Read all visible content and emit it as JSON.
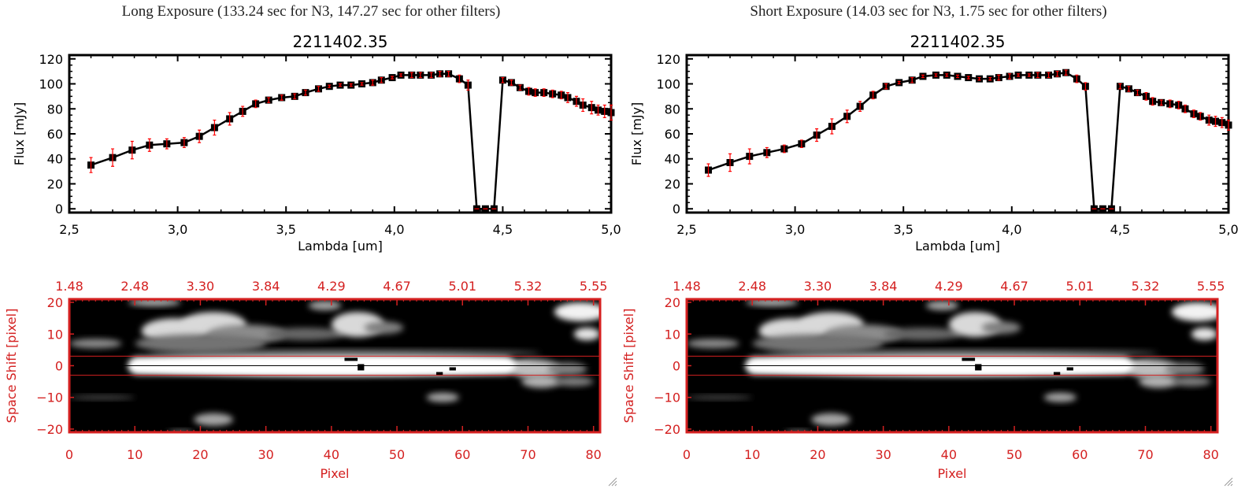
{
  "panels": [
    {
      "exposure_title": "Long Exposure (133.24 sec for N3, 147.27 sec for other filters)"
    },
    {
      "exposure_title": "Short Exposure (14.03 sec for N3, 1.75 sec for other filters)"
    }
  ],
  "colors": {
    "axis_red": "#d42020",
    "errorbar": "#ff0000",
    "line": "#000000"
  },
  "chart_data": [
    {
      "type": "line",
      "title": "2211402.35",
      "xlabel": "Lambda [um]",
      "ylabel": "Flux [mJy]",
      "xlim": [
        2.5,
        5.0
      ],
      "ylim": [
        -3,
        123
      ],
      "xticks": [
        "2.5",
        "3.0",
        "3.5",
        "4.0",
        "4.5",
        "5.0"
      ],
      "yticks": [
        "0",
        "20",
        "40",
        "60",
        "80",
        "100",
        "120"
      ],
      "x": [
        2.6,
        2.7,
        2.79,
        2.87,
        2.95,
        3.03,
        3.1,
        3.17,
        3.24,
        3.3,
        3.36,
        3.42,
        3.48,
        3.54,
        3.59,
        3.65,
        3.7,
        3.75,
        3.8,
        3.85,
        3.9,
        3.94,
        3.99,
        4.03,
        4.08,
        4.12,
        4.17,
        4.21,
        4.25,
        4.3,
        4.34,
        4.38,
        4.42,
        4.46,
        4.5,
        4.54,
        4.58,
        4.62,
        4.65,
        4.69,
        4.73,
        4.77,
        4.8,
        4.84,
        4.87,
        4.91,
        4.94,
        4.97,
        5.0
      ],
      "y": [
        35,
        41,
        47,
        51,
        52,
        53,
        58,
        65,
        72,
        78,
        84,
        87,
        89,
        90,
        93,
        96,
        98,
        99,
        99,
        100,
        101,
        103,
        105,
        107,
        107,
        107,
        107,
        108,
        108,
        104,
        99,
        0,
        0,
        0,
        103,
        101,
        97,
        94,
        93,
        93,
        92,
        91,
        89,
        86,
        83,
        81,
        79,
        78,
        77
      ],
      "yerr": [
        6,
        7,
        7,
        5,
        4,
        4,
        5,
        6,
        5,
        4,
        3,
        2,
        2,
        2,
        2,
        2,
        1,
        1,
        1,
        1,
        2,
        2,
        1,
        1,
        2,
        2,
        2,
        2,
        2,
        3,
        4,
        0,
        0,
        0,
        2,
        2,
        2,
        3,
        3,
        3,
        3,
        3,
        4,
        4,
        5,
        5,
        4,
        5,
        6
      ]
    },
    {
      "type": "line",
      "title": "2211402.35",
      "xlabel": "Lambda [um]",
      "ylabel": "Flux [mJy]",
      "xlim": [
        2.5,
        5.0
      ],
      "ylim": [
        -3,
        123
      ],
      "xticks": [
        "2.5",
        "3.0",
        "3.5",
        "4.0",
        "4.5",
        "5.0"
      ],
      "yticks": [
        "0",
        "20",
        "40",
        "60",
        "80",
        "100",
        "120"
      ],
      "x": [
        2.6,
        2.7,
        2.79,
        2.87,
        2.95,
        3.03,
        3.1,
        3.17,
        3.24,
        3.3,
        3.36,
        3.42,
        3.48,
        3.54,
        3.59,
        3.65,
        3.7,
        3.75,
        3.8,
        3.85,
        3.9,
        3.94,
        3.99,
        4.03,
        4.08,
        4.12,
        4.17,
        4.21,
        4.25,
        4.3,
        4.34,
        4.38,
        4.42,
        4.46,
        4.5,
        4.54,
        4.58,
        4.62,
        4.65,
        4.69,
        4.73,
        4.77,
        4.8,
        4.84,
        4.87,
        4.91,
        4.94,
        4.97,
        5.0
      ],
      "y": [
        31,
        37,
        42,
        45,
        48,
        52,
        59,
        66,
        74,
        82,
        91,
        98,
        101,
        103,
        106,
        107,
        107,
        106,
        105,
        104,
        104,
        105,
        106,
        107,
        107,
        107,
        107,
        108,
        109,
        104,
        98,
        0,
        0,
        0,
        98,
        96,
        93,
        90,
        86,
        85,
        84,
        83,
        80,
        76,
        74,
        71,
        70,
        69,
        67
      ],
      "yerr": [
        5,
        7,
        6,
        4,
        3,
        3,
        5,
        6,
        5,
        4,
        3,
        2,
        1,
        2,
        1,
        1,
        1,
        1,
        1,
        1,
        1,
        2,
        2,
        1,
        1,
        2,
        2,
        2,
        2,
        3,
        3,
        0,
        0,
        0,
        2,
        2,
        2,
        3,
        3,
        2,
        3,
        3,
        3,
        3,
        3,
        4,
        4,
        4,
        4
      ]
    },
    {
      "type": "heatmap",
      "xlabel": "Pixel",
      "ylabel": "Space Shift [pixel]",
      "xlim": [
        0,
        81
      ],
      "ylim": [
        -21,
        21
      ],
      "xticks": [
        "0",
        "10",
        "20",
        "30",
        "40",
        "50",
        "60",
        "70",
        "80"
      ],
      "yticks": [
        "-20",
        "-10",
        "0",
        "10",
        "20"
      ],
      "top_ticks": [
        "1.48",
        "2.48",
        "3.30",
        "3.84",
        "4.29",
        "4.67",
        "5.01",
        "5.32",
        "5.55"
      ],
      "aperture_lines": [
        3,
        -3
      ],
      "center_line": 0
    },
    {
      "type": "heatmap",
      "xlabel": "Pixel",
      "ylabel": "Space Shift [pixel]",
      "xlim": [
        0,
        81
      ],
      "ylim": [
        -21,
        21
      ],
      "xticks": [
        "0",
        "10",
        "20",
        "30",
        "40",
        "50",
        "60",
        "70",
        "80"
      ],
      "yticks": [
        "-20",
        "-10",
        "0",
        "10",
        "20"
      ],
      "top_ticks": [
        "1.48",
        "2.48",
        "3.30",
        "3.84",
        "4.29",
        "4.67",
        "5.01",
        "5.32",
        "5.55"
      ],
      "aperture_lines": [
        3,
        -3
      ],
      "center_line": 0
    }
  ]
}
